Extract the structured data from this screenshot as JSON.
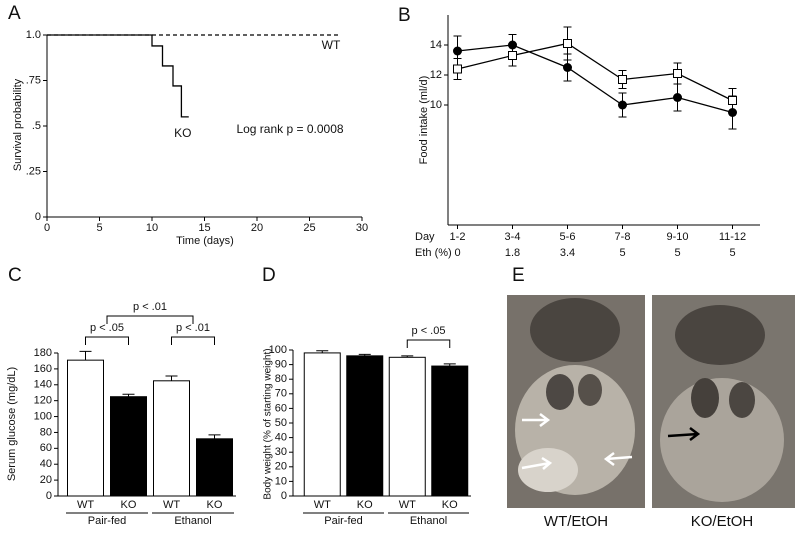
{
  "chart_data": [
    {
      "type": "line",
      "panel": "A",
      "xlabel": "Time (days)",
      "ylabel": "Survival probability",
      "xlim": [
        0,
        30
      ],
      "xticks": [
        0,
        5,
        10,
        15,
        20,
        25,
        30
      ],
      "ylim": [
        0,
        1
      ],
      "yticks": [
        0,
        {
          "value": 0.25,
          "label": ".25"
        },
        {
          "value": 0.5,
          "label": ".5"
        },
        {
          "value": 0.75,
          "label": ".75"
        },
        {
          "value": 1,
          "label": "1.0"
        }
      ],
      "series": [
        {
          "name": "WT",
          "color": "#000000",
          "dash": true,
          "x": [
            0,
            28
          ],
          "values": [
            1,
            1
          ]
        },
        {
          "name": "KO",
          "color": "#000000",
          "dash": false,
          "x": [
            0,
            10,
            10,
            11,
            11,
            12,
            12,
            12.8,
            12.8,
            13.5
          ],
          "values": [
            1,
            1,
            0.94,
            0.94,
            0.83,
            0.83,
            0.72,
            0.72,
            0.55,
            0.55
          ]
        }
      ],
      "annotations": [
        "Log rank p = 0.0008"
      ]
    },
    {
      "type": "line",
      "panel": "B",
      "ylabel": "Food intake (ml/d)",
      "row_labels": [
        "Day",
        "Eth (%)"
      ],
      "categories": [
        "1-2",
        "3-4",
        "5-6",
        "7-8",
        "9-10",
        "11-12"
      ],
      "secondary_categories": [
        0,
        1.8,
        3.4,
        5,
        5,
        5
      ],
      "ylim": [
        2,
        16
      ],
      "yticks": [
        10,
        12,
        14
      ],
      "series": [
        {
          "marker": "filled",
          "color": "#000000",
          "values": [
            13.6,
            14.0,
            12.5,
            10.0,
            10.5,
            9.5
          ],
          "errors": [
            1.0,
            0.7,
            0.9,
            0.8,
            0.9,
            1.1
          ]
        },
        {
          "marker": "open",
          "color": "#000000",
          "values": [
            12.4,
            13.3,
            14.1,
            11.7,
            12.1,
            10.3
          ],
          "errors": [
            0.7,
            0.7,
            1.1,
            0.6,
            0.7,
            0.8
          ]
        }
      ]
    },
    {
      "type": "bar",
      "panel": "C",
      "ylabel": "Serum glucose (mg/dL)",
      "categories": [
        "WT",
        "KO",
        "WT",
        "KO"
      ],
      "groups": [
        "Pair-fed",
        "Ethanol"
      ],
      "values": [
        171,
        125,
        145,
        72
      ],
      "errors": [
        11,
        3,
        6,
        5
      ],
      "colors": [
        "#ffffff",
        "#000000",
        "#ffffff",
        "#000000"
      ],
      "ylim": [
        0,
        180
      ],
      "yticks": [
        0,
        20,
        40,
        60,
        80,
        100,
        120,
        140,
        160,
        180
      ],
      "annotations": [
        "p < .05",
        "p < .01",
        "p < .01"
      ]
    },
    {
      "type": "bar",
      "panel": "D",
      "ylabel": "Body weight (% of starting weight)",
      "categories": [
        "WT",
        "KO",
        "WT",
        "KO"
      ],
      "groups": [
        "Pair-fed",
        "Ethanol"
      ],
      "values": [
        98,
        96,
        95,
        89
      ],
      "errors": [
        1.5,
        1,
        1,
        1.5
      ],
      "colors": [
        "#ffffff",
        "#000000",
        "#ffffff",
        "#000000"
      ],
      "ylim": [
        0,
        100
      ],
      "yticks": [
        0,
        10,
        20,
        30,
        40,
        50,
        60,
        70,
        80,
        90,
        100
      ],
      "annotations": [
        "p < .05"
      ]
    }
  ],
  "images": {
    "panel": "E",
    "captions": [
      "WT/EtOH",
      "KO/EtOH"
    ]
  }
}
